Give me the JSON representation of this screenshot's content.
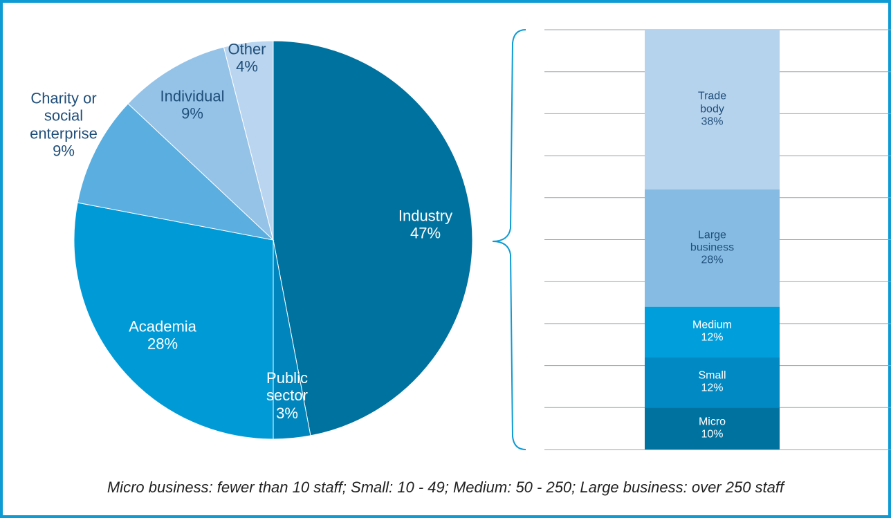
{
  "chart_data": [
    {
      "type": "pie",
      "categories": [
        "Industry",
        "Public sector",
        "Academia",
        "Charity or social enterprise",
        "Individual",
        "Other"
      ],
      "values": [
        47,
        3,
        28,
        9,
        9,
        4
      ],
      "value_labels": [
        "47%",
        "3%",
        "28%",
        "9%",
        "9%",
        "4%"
      ],
      "colors": [
        "#00729f",
        "#0086bd",
        "#009ad6",
        "#5aaee0",
        "#95c3e8",
        "#b9d5ef"
      ]
    },
    {
      "type": "stacked_bar",
      "categories": [
        "Micro",
        "Small",
        "Medium",
        "Large business",
        "Trade body"
      ],
      "values": [
        10,
        12,
        12,
        28,
        38
      ],
      "value_labels": [
        "10%",
        "12%",
        "12%",
        "28%",
        "38%"
      ],
      "colors": [
        "#00729f",
        "#0089c2",
        "#009fdc",
        "#86bce4",
        "#b6d3ee"
      ],
      "ylim": [
        0,
        100
      ],
      "yticks": [
        0,
        10,
        20,
        30,
        40,
        50,
        60,
        70,
        80,
        90,
        100
      ],
      "grid": true,
      "note": "Micro business: fewer than 10 staff; Small: 10 - 49; Medium: 50 - 250; Large business: over 250 staff"
    }
  ]
}
